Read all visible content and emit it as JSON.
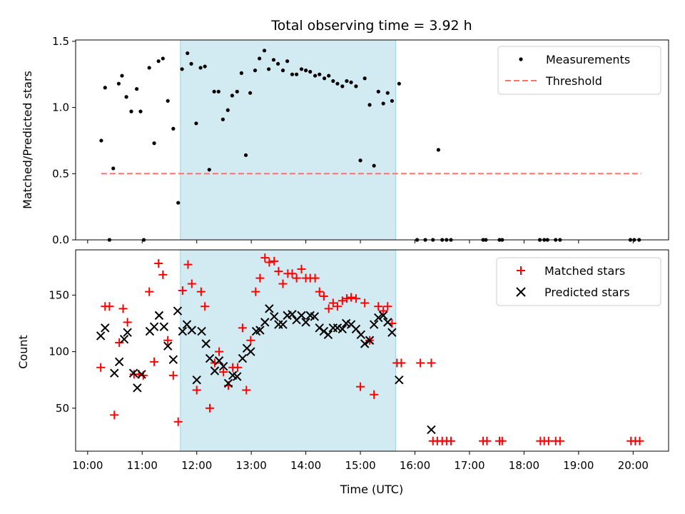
{
  "figure": {
    "title": "Total observing time = 3.92 h",
    "xlabel": "Time (UTC)",
    "x_ticks": [
      "10:00",
      "11:00",
      "12:00",
      "13:00",
      "14:00",
      "15:00",
      "16:00",
      "17:00",
      "18:00",
      "19:00",
      "20:00"
    ],
    "x_range_hours": [
      9.78,
      20.65
    ],
    "highlight_span_hours": [
      11.7,
      15.65
    ]
  },
  "chart_data": [
    {
      "type": "scatter",
      "ylabel": "Matched/Predicted stars",
      "ylim": [
        0,
        1.51
      ],
      "y_ticks": [
        "0.0",
        "0.5",
        "1.0",
        "1.5"
      ],
      "y_tick_values": [
        0,
        0.5,
        1.0,
        1.5
      ],
      "legend": [
        "Measurements",
        "Threshold"
      ],
      "legend_placement": "top-right",
      "series": [
        {
          "name": "Measurements",
          "color": "#000000",
          "marker": "dot",
          "x_hours": [
            10.25,
            10.32,
            10.4,
            10.47,
            10.57,
            10.63,
            10.71,
            10.8,
            10.9,
            10.97,
            11.03,
            11.13,
            11.22,
            11.3,
            11.38,
            11.47,
            11.57,
            11.66,
            11.73,
            11.83,
            11.9,
            11.99,
            12.07,
            12.15,
            12.23,
            12.32,
            12.4,
            12.48,
            12.57,
            12.65,
            12.74,
            12.82,
            12.9,
            12.98,
            13.07,
            13.15,
            13.24,
            13.32,
            13.41,
            13.49,
            13.58,
            13.66,
            13.75,
            13.83,
            13.92,
            14.0,
            14.08,
            14.17,
            14.25,
            14.34,
            14.42,
            14.5,
            14.58,
            14.67,
            14.75,
            14.83,
            14.92,
            15.0,
            15.08,
            15.17,
            15.25,
            15.33,
            15.42,
            15.5,
            15.58,
            15.71,
            16.04,
            16.19,
            16.33,
            16.43,
            16.5,
            16.58,
            16.66,
            17.25,
            17.3,
            17.55,
            17.6,
            18.29,
            18.37,
            18.43,
            18.58,
            18.66,
            19.95,
            20.02,
            20.11
          ],
          "y": [
            0.75,
            1.15,
            0.0,
            0.54,
            1.18,
            1.24,
            1.08,
            0.97,
            1.14,
            0.97,
            0.0,
            1.3,
            0.73,
            1.35,
            1.37,
            1.05,
            0.84,
            0.28,
            1.29,
            1.41,
            1.33,
            0.88,
            1.3,
            1.31,
            0.53,
            1.12,
            1.12,
            0.91,
            0.98,
            1.09,
            1.12,
            1.26,
            0.64,
            1.11,
            1.28,
            1.37,
            1.43,
            1.29,
            1.36,
            1.33,
            1.28,
            1.35,
            1.25,
            1.25,
            1.29,
            1.28,
            1.27,
            1.24,
            1.25,
            1.22,
            1.24,
            1.2,
            1.18,
            1.16,
            1.2,
            1.19,
            1.16,
            0.6,
            1.22,
            1.02,
            0.56,
            1.12,
            1.03,
            1.11,
            1.05,
            1.18,
            0.0,
            0.0,
            0.0,
            0.68,
            0.0,
            0.0,
            0.0,
            0.0,
            0.0,
            0.0,
            0.0,
            0.0,
            0.0,
            0.0,
            0.0,
            0.0,
            0.0,
            0.0,
            0.0
          ]
        },
        {
          "name": "Threshold",
          "color": "#ff7070",
          "style": "dashed",
          "x_hours": [
            10.25,
            20.15
          ],
          "y": [
            0.5,
            0.5
          ]
        }
      ]
    },
    {
      "type": "scatter",
      "ylabel": "Count",
      "ylim": [
        12,
        190
      ],
      "y_ticks": [
        "50",
        "100",
        "150"
      ],
      "y_tick_values": [
        50,
        100,
        150
      ],
      "legend": [
        "Matched stars",
        "Predicted stars"
      ],
      "legend_placement": "top-right",
      "series": [
        {
          "name": "Matched stars",
          "color": "#ff0000",
          "marker": "plus",
          "x_hours": [
            10.24,
            10.32,
            10.4,
            10.49,
            10.58,
            10.65,
            10.73,
            10.85,
            10.94,
            11.02,
            11.13,
            11.22,
            11.3,
            11.38,
            11.47,
            11.57,
            11.66,
            11.74,
            11.84,
            11.91,
            12.0,
            12.08,
            12.15,
            12.24,
            12.33,
            12.41,
            12.49,
            12.58,
            12.66,
            12.75,
            12.84,
            12.91,
            12.99,
            13.08,
            13.16,
            13.25,
            13.33,
            13.42,
            13.5,
            13.58,
            13.67,
            13.75,
            13.83,
            13.92,
            14.0,
            14.08,
            14.17,
            14.25,
            14.33,
            14.42,
            14.5,
            14.58,
            14.67,
            14.75,
            14.83,
            14.92,
            15.0,
            15.08,
            15.17,
            15.25,
            15.33,
            15.42,
            15.5,
            15.58,
            15.67,
            15.75,
            16.1,
            16.3,
            16.33,
            16.41,
            16.5,
            16.58,
            16.66,
            17.25,
            17.32,
            17.55,
            17.6,
            18.3,
            18.37,
            18.45,
            18.58,
            18.66,
            19.96,
            20.04,
            20.12
          ],
          "y": [
            86,
            140,
            140,
            44,
            108,
            138,
            126,
            80,
            80,
            79,
            153,
            91,
            178,
            168,
            110,
            79,
            38,
            154,
            177,
            160,
            66,
            153,
            140,
            50,
            90,
            100,
            82,
            70,
            86,
            86,
            121,
            66,
            110,
            153,
            165,
            183,
            179,
            180,
            171,
            160,
            169,
            169,
            165,
            173,
            165,
            165,
            165,
            153,
            149,
            138,
            143,
            140,
            145,
            147,
            148,
            147,
            69,
            143,
            110,
            62,
            140,
            136,
            140,
            125,
            90,
            90,
            90,
            90,
            21,
            21,
            21,
            21,
            21,
            21,
            21,
            21,
            21,
            21,
            21,
            21,
            21,
            21,
            21,
            21,
            21
          ]
        },
        {
          "name": "Predicted stars",
          "color": "#000000",
          "marker": "x",
          "x_hours": [
            10.24,
            10.32,
            10.49,
            10.58,
            10.67,
            10.73,
            10.84,
            10.91,
            10.99,
            11.14,
            11.22,
            11.31,
            11.4,
            11.47,
            11.57,
            11.65,
            11.74,
            11.82,
            11.91,
            12.0,
            12.09,
            12.17,
            12.24,
            12.33,
            12.41,
            12.49,
            12.58,
            12.66,
            12.74,
            12.84,
            12.92,
            12.99,
            13.09,
            13.16,
            13.25,
            13.33,
            13.42,
            13.5,
            13.58,
            13.66,
            13.75,
            13.83,
            13.92,
            14.0,
            14.08,
            14.16,
            14.25,
            14.33,
            14.41,
            14.5,
            14.58,
            14.67,
            14.74,
            14.83,
            14.92,
            15.01,
            15.08,
            15.17,
            15.25,
            15.33,
            15.42,
            15.5,
            15.58,
            15.71,
            16.3
          ],
          "y": [
            114,
            121,
            81,
            91,
            111,
            117,
            81,
            68,
            80,
            118,
            122,
            132,
            122,
            105,
            93,
            136,
            118,
            124,
            119,
            75,
            118,
            107,
            94,
            83,
            92,
            87,
            72,
            79,
            78,
            94,
            103,
            100,
            118,
            119,
            126,
            138,
            131,
            124,
            124,
            132,
            133,
            128,
            132,
            126,
            132,
            131,
            121,
            118,
            115,
            121,
            121,
            120,
            125,
            124,
            120,
            115,
            107,
            110,
            124,
            130,
            132,
            126,
            117,
            75,
            31
          ]
        }
      ]
    }
  ]
}
